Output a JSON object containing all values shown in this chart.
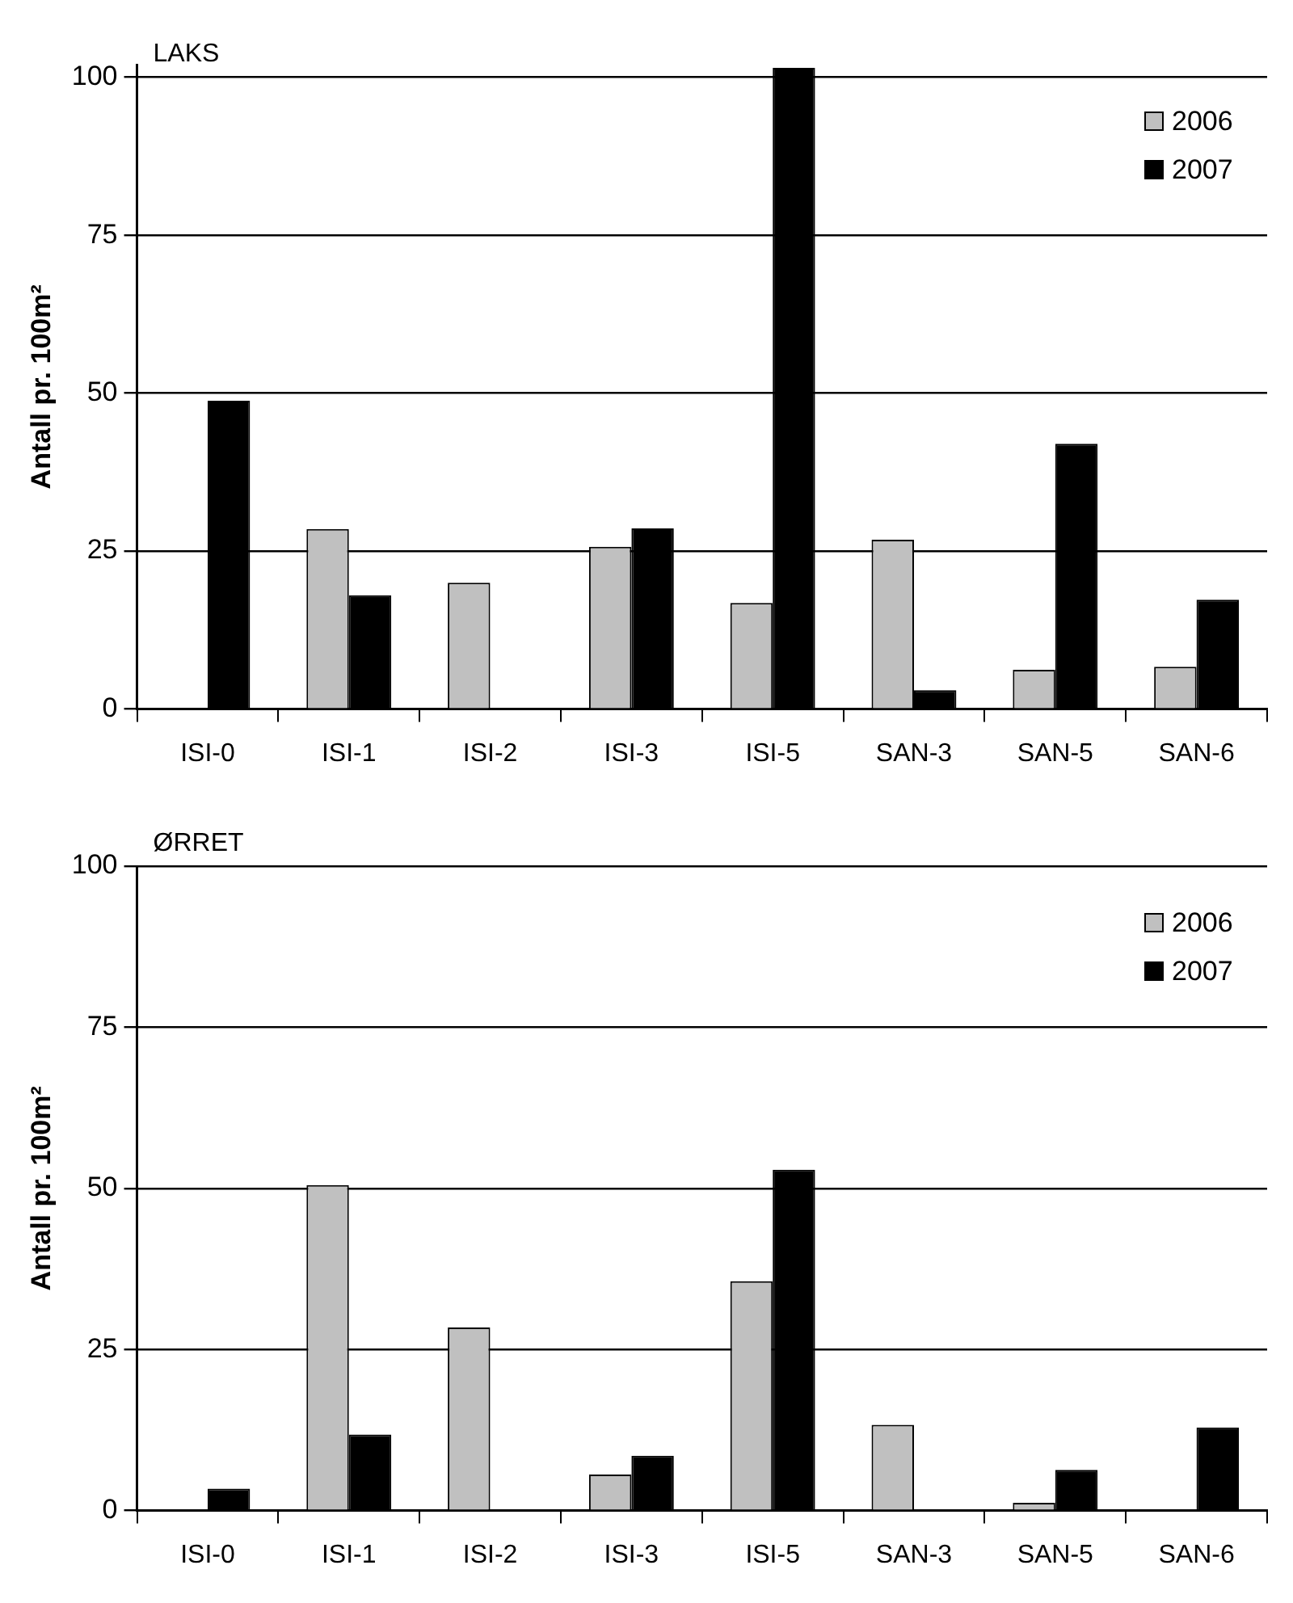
{
  "chart_data": [
    {
      "type": "bar",
      "title": "LAKS",
      "ylabel": "Antall pr. 100m²",
      "categories": [
        "ISI-0",
        "ISI-1",
        "ISI-2",
        "ISI-3",
        "ISI-5",
        "SAN-3",
        "SAN-5",
        "SAN-6"
      ],
      "series": [
        {
          "name": "2006",
          "color": "#c0c0c0",
          "values": [
            null,
            28.5,
            20,
            25.7,
            16.8,
            26.8,
            6.2,
            6.7
          ]
        },
        {
          "name": "2007",
          "color": "#000000",
          "values": [
            48.8,
            18,
            null,
            28.6,
            101.5,
            3,
            42,
            17.3
          ]
        }
      ],
      "ylim": [
        0,
        102
      ],
      "yticks": [
        0,
        25,
        50,
        75,
        100
      ],
      "grid": "y",
      "legend": "top right"
    },
    {
      "type": "bar",
      "title": "ØRRET",
      "ylabel": "Antall pr. 100m²",
      "categories": [
        "ISI-0",
        "ISI-1",
        "ISI-2",
        "ISI-3",
        "ISI-5",
        "SAN-3",
        "SAN-5",
        "SAN-6"
      ],
      "series": [
        {
          "name": "2006",
          "color": "#c0c0c0",
          "values": [
            null,
            50.5,
            28.4,
            5.6,
            35.6,
            13.3,
            1.2,
            null
          ]
        },
        {
          "name": "2007",
          "color": "#000000",
          "values": [
            3.4,
            11.8,
            null,
            8.5,
            52.9,
            null,
            6.3,
            12.9
          ]
        }
      ],
      "ylim": [
        0,
        100
      ],
      "yticks": [
        0,
        25,
        50,
        75,
        100
      ],
      "grid": "y",
      "legend": "top right"
    }
  ]
}
